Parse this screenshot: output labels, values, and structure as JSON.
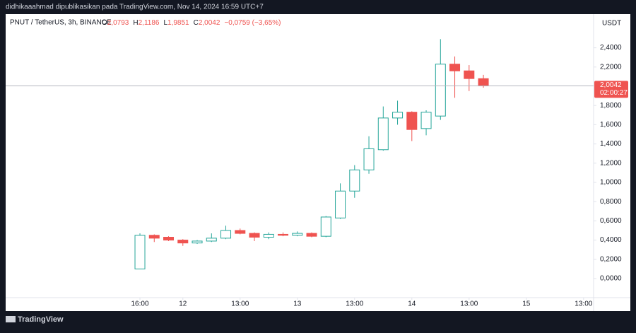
{
  "header": {
    "publisher": "didhikaaahmad dipublikasikan pada TradingView.com, Nov 14, 2024 16:59 UTC+7",
    "brand": "TradingView"
  },
  "chart_data": {
    "type": "candlestick",
    "symbol": "PNUT / TetherUS, 3h, BINANCE",
    "ohlc_legend": [
      {
        "key": "O",
        "text": "2,0793"
      },
      {
        "key": "H",
        "text": "2,1186"
      },
      {
        "key": "L",
        "text": "1,9851"
      },
      {
        "key": "C",
        "text": "2,0042"
      }
    ],
    "change": "−0,0759 (−3,65%)",
    "currency": "USDT",
    "price_label": "2,0042",
    "countdown": "02:00:27",
    "up_color": "#26a69a",
    "down_color": "#ef5350",
    "x": [
      0,
      1,
      2,
      3,
      4,
      5,
      6,
      7,
      8,
      9,
      10,
      11,
      12,
      13,
      14,
      15,
      16,
      17,
      18,
      19,
      20,
      21,
      22,
      23,
      24
    ],
    "open": [
      0.1,
      0.45,
      0.43,
      0.4,
      0.37,
      0.39,
      0.42,
      0.5,
      0.47,
      0.43,
      0.46,
      0.45,
      0.47,
      0.44,
      0.63,
      0.91,
      1.13,
      1.34,
      1.67,
      1.73,
      1.56,
      1.69,
      2.23,
      2.16,
      2.0793
    ],
    "high": [
      0.47,
      0.46,
      0.44,
      0.41,
      0.4,
      0.47,
      0.55,
      0.52,
      0.48,
      0.48,
      0.48,
      0.49,
      0.48,
      0.65,
      0.99,
      1.18,
      1.48,
      1.79,
      1.85,
      1.74,
      1.75,
      2.49,
      2.31,
      2.22,
      2.1186
    ],
    "low": [
      0.1,
      0.38,
      0.39,
      0.34,
      0.36,
      0.38,
      0.41,
      0.46,
      0.39,
      0.41,
      0.44,
      0.44,
      0.43,
      0.43,
      0.62,
      0.84,
      1.09,
      1.33,
      1.6,
      1.43,
      1.49,
      1.65,
      1.88,
      1.95,
      1.9851
    ],
    "close": [
      0.45,
      0.42,
      0.4,
      0.37,
      0.39,
      0.42,
      0.5,
      0.47,
      0.43,
      0.46,
      0.45,
      0.47,
      0.44,
      0.64,
      0.91,
      1.13,
      1.35,
      1.67,
      1.73,
      1.55,
      1.73,
      2.23,
      2.16,
      2.08,
      2.0042
    ],
    "xlim": [
      -9.383,
      31.7
    ],
    "xticks": [
      {
        "value": 0,
        "label": "16:00"
      },
      {
        "value": 3,
        "label": "12"
      },
      {
        "value": 7,
        "label": "13:00"
      },
      {
        "value": 11,
        "label": "13"
      },
      {
        "value": 15,
        "label": "13:00"
      },
      {
        "value": 19,
        "label": "14"
      },
      {
        "value": 23,
        "label": "13:00"
      },
      {
        "value": 27,
        "label": "15"
      },
      {
        "value": 31,
        "label": "13:00"
      }
    ],
    "ylim": [
      -0.228,
      2.75
    ],
    "yticks": [
      {
        "value": 0,
        "label": "0,0000"
      },
      {
        "value": 0.2,
        "label": "0,2000"
      },
      {
        "value": 0.4,
        "label": "0,4000"
      },
      {
        "value": 0.6,
        "label": "0,6000"
      },
      {
        "value": 0.8,
        "label": "0,8000"
      },
      {
        "value": 1.0,
        "label": "1,0000"
      },
      {
        "value": 1.2,
        "label": "1,2000"
      },
      {
        "value": 1.4,
        "label": "1,4000"
      },
      {
        "value": 1.6,
        "label": "1,6000"
      },
      {
        "value": 1.8,
        "label": "1,8000"
      },
      {
        "value": 2.2,
        "label": "2,2000"
      },
      {
        "value": 2.4,
        "label": "2,4000"
      }
    ],
    "grid": false
  }
}
